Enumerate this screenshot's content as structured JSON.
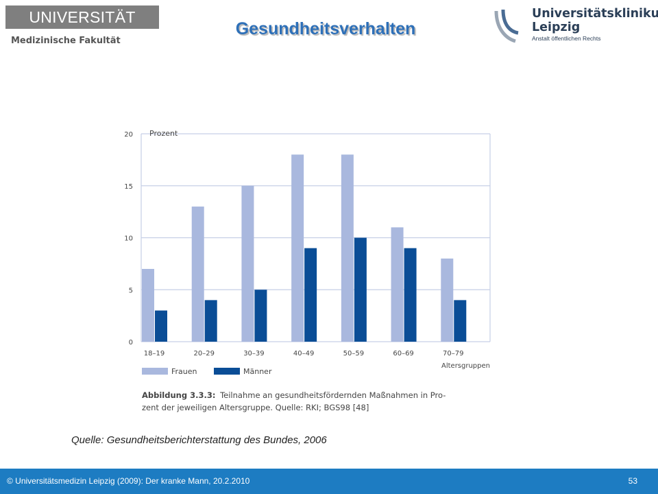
{
  "header": {
    "university": "UNIVERSITÄT LEIPZIG",
    "faculty": "Medizinische Fakultät",
    "title": "Gesundheitsverhalten",
    "klinik_line1": "Universitätsklinikum",
    "klinik_line2": "Leipzig",
    "klinik_sub": "Anstalt öffentlichen Rechts"
  },
  "chart_data": {
    "type": "bar",
    "ylabel": "Prozent",
    "xlabel": "Altersgruppen",
    "ylim": [
      0,
      20
    ],
    "yticks": [
      0,
      5,
      10,
      15,
      20
    ],
    "grid": true,
    "legend_position": "bottom-left",
    "categories": [
      "18–19",
      "20–29",
      "30–39",
      "40–49",
      "50–59",
      "60–69",
      "70–79"
    ],
    "series": [
      {
        "name": "Frauen",
        "values": [
          7,
          13,
          15,
          18,
          18,
          11,
          8
        ],
        "color": "#a9b8de"
      },
      {
        "name": "Männer",
        "values": [
          3,
          4,
          5,
          9,
          10,
          9,
          4
        ],
        "color": "#0a4d96"
      }
    ],
    "caption_label": "Abbildung 3.3.3:",
    "caption_line1": "Teilnahme an gesundheitsfördernden Maßnahmen in Pro-",
    "caption_line2": "zent der jeweiligen Altersgruppe. Quelle: RKI; BGS98 [48]"
  },
  "source": "Quelle: Gesundheitsberichterstattung des Bundes, 2006",
  "footer": {
    "text": "© Universitätsmedizin Leipzig (2009): Der kranke Mann, 20.2.2010",
    "page": "53"
  },
  "colors": {
    "title": "#2e70b8",
    "footer_bg": "#1d7cc2",
    "gridline": "#c6cfe6"
  }
}
